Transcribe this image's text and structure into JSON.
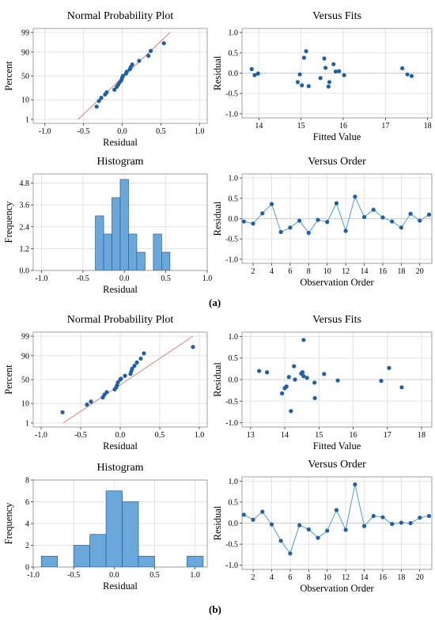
{
  "figure_labels": [
    "(a)",
    "(b)"
  ],
  "colors": {
    "point": "#1f5fa8",
    "line": "#4a9fd6",
    "ref": "#e07a7a",
    "bar": "#6aa8dc",
    "bar_edge": "#2c5f8a",
    "grid": "#e3e3e3",
    "zero": "#b0b0b0"
  },
  "chart_data": [
    {
      "type": "scatter",
      "title": "Normal Probability Plot",
      "xlabel": "Residual",
      "ylabel": "Percent",
      "xlim": [
        -1.15,
        1.1
      ],
      "xticks": [
        -1.0,
        -0.5,
        0.0,
        0.5,
        1.0
      ],
      "yticks": [
        1,
        10,
        50,
        90,
        99
      ],
      "yscale": "normal-probability",
      "reference_line": [
        [
          -0.57,
          1
        ],
        [
          0.62,
          99
        ]
      ],
      "points": [
        [
          -0.33,
          5
        ],
        [
          -0.3,
          9
        ],
        [
          -0.27,
          12
        ],
        [
          -0.22,
          16
        ],
        [
          -0.2,
          19
        ],
        [
          -0.1,
          23
        ],
        [
          -0.07,
          28
        ],
        [
          -0.05,
          32
        ],
        [
          -0.03,
          37
        ],
        [
          -0.01,
          41
        ],
        [
          0.0,
          46
        ],
        [
          0.01,
          50
        ],
        [
          0.05,
          55
        ],
        [
          0.06,
          59
        ],
        [
          0.1,
          64
        ],
        [
          0.11,
          68
        ],
        [
          0.13,
          73
        ],
        [
          0.22,
          79
        ],
        [
          0.34,
          86
        ],
        [
          0.37,
          91
        ],
        [
          0.54,
          96
        ]
      ]
    },
    {
      "type": "scatter",
      "title": "Versus Fits",
      "xlabel": "Fitted Value",
      "ylabel": "Residual",
      "xlim": [
        13.6,
        18.1
      ],
      "xticks": [
        14,
        15,
        16,
        17,
        18
      ],
      "ylim": [
        -1.1,
        1.1
      ],
      "yticks": [
        -1.0,
        -0.5,
        0.0,
        0.5,
        1.0
      ],
      "points": [
        [
          13.83,
          0.1
        ],
        [
          13.9,
          -0.05
        ],
        [
          13.98,
          -0.01
        ],
        [
          14.92,
          -0.22
        ],
        [
          14.97,
          -0.03
        ],
        [
          15.02,
          -0.3
        ],
        [
          15.07,
          0.38
        ],
        [
          15.12,
          0.54
        ],
        [
          15.18,
          -0.32
        ],
        [
          15.46,
          -0.12
        ],
        [
          15.55,
          0.36
        ],
        [
          15.58,
          0.13
        ],
        [
          15.65,
          -0.33
        ],
        [
          15.67,
          -0.22
        ],
        [
          15.77,
          0.22
        ],
        [
          15.82,
          0.04
        ],
        [
          15.9,
          0.05
        ],
        [
          16.02,
          -0.05
        ],
        [
          17.4,
          0.12
        ],
        [
          17.52,
          -0.03
        ],
        [
          17.62,
          -0.07
        ]
      ]
    },
    {
      "type": "bar",
      "title": "Histogram",
      "xlabel": "Residual",
      "ylabel": "Frequency",
      "xlim": [
        -1.1,
        1.0
      ],
      "xticks": [
        -1.0,
        -0.5,
        0.0,
        0.5,
        1.0
      ],
      "ylim": [
        0,
        5.3
      ],
      "yticks": [
        0.0,
        1.2,
        2.4,
        3.6,
        4.8
      ],
      "bin_width": 0.1,
      "bin_starts": [
        -0.35,
        -0.25,
        -0.15,
        -0.05,
        0.05,
        0.15,
        0.25,
        0.35,
        0.45
      ],
      "values": [
        3,
        2,
        4,
        5,
        2,
        1,
        0,
        2,
        1
      ]
    },
    {
      "type": "line",
      "title": "Versus Order",
      "xlabel": "Observation Order",
      "ylabel": "Residual",
      "xlim": [
        0.8,
        21.3
      ],
      "xticks": [
        2,
        4,
        6,
        8,
        10,
        12,
        14,
        16,
        18,
        20
      ],
      "ylim": [
        -1.1,
        1.1
      ],
      "yticks": [
        -1.0,
        -0.5,
        0.0,
        0.5,
        1.0
      ],
      "x": [
        1,
        2,
        3,
        4,
        5,
        6,
        7,
        8,
        9,
        10,
        11,
        12,
        13,
        14,
        15,
        16,
        17,
        18,
        19,
        20,
        21
      ],
      "y": [
        -0.07,
        -0.12,
        0.13,
        0.36,
        -0.33,
        -0.22,
        -0.05,
        -0.35,
        -0.03,
        -0.08,
        0.38,
        -0.3,
        0.54,
        0.04,
        0.22,
        0.03,
        -0.07,
        -0.22,
        0.12,
        -0.05,
        0.1
      ]
    },
    {
      "type": "scatter",
      "title": "Normal Probability Plot",
      "xlabel": "Residual",
      "ylabel": "Percent",
      "xlim": [
        -1.1,
        1.1
      ],
      "xticks": [
        -1.0,
        -0.5,
        0.0,
        0.5,
        1.0
      ],
      "yticks": [
        1,
        10,
        50,
        90,
        99
      ],
      "yscale": "normal-probability",
      "reference_line": [
        [
          -0.72,
          1
        ],
        [
          0.92,
          99
        ]
      ],
      "points": [
        [
          -0.73,
          4
        ],
        [
          -0.42,
          9
        ],
        [
          -0.37,
          12
        ],
        [
          -0.22,
          17
        ],
        [
          -0.2,
          21
        ],
        [
          -0.17,
          25
        ],
        [
          -0.07,
          30
        ],
        [
          -0.05,
          34
        ],
        [
          -0.04,
          38
        ],
        [
          -0.03,
          44
        ],
        [
          0.0,
          50
        ],
        [
          0.01,
          52
        ],
        [
          0.06,
          58
        ],
        [
          0.13,
          62
        ],
        [
          0.14,
          67
        ],
        [
          0.15,
          72
        ],
        [
          0.18,
          77
        ],
        [
          0.21,
          82
        ],
        [
          0.26,
          87
        ],
        [
          0.3,
          92
        ],
        [
          0.92,
          96
        ]
      ]
    },
    {
      "type": "scatter",
      "title": "Versus Fits",
      "xlabel": "Fitted Value",
      "ylabel": "Residual",
      "xlim": [
        12.75,
        18.3
      ],
      "xticks": [
        13,
        14,
        15,
        16,
        17,
        18
      ],
      "ylim": [
        -1.1,
        1.1
      ],
      "yticks": [
        -1.0,
        -0.5,
        0.0,
        0.5,
        1.0
      ],
      "points": [
        [
          13.25,
          0.2
        ],
        [
          13.48,
          0.17
        ],
        [
          13.92,
          -0.32
        ],
        [
          14.0,
          -0.2
        ],
        [
          14.05,
          -0.16
        ],
        [
          14.12,
          0.06
        ],
        [
          14.18,
          -0.73
        ],
        [
          14.27,
          0.31
        ],
        [
          14.3,
          0.0
        ],
        [
          14.48,
          0.14
        ],
        [
          14.52,
          0.17
        ],
        [
          14.55,
          0.92
        ],
        [
          14.55,
          0.08
        ],
        [
          14.65,
          0.04
        ],
        [
          14.87,
          -0.07
        ],
        [
          14.88,
          -0.43
        ],
        [
          15.15,
          0.13
        ],
        [
          15.55,
          -0.02
        ],
        [
          16.82,
          -0.03
        ],
        [
          17.05,
          0.27
        ],
        [
          17.42,
          -0.18
        ]
      ]
    },
    {
      "type": "bar",
      "title": "Histogram",
      "xlabel": "Residual",
      "ylabel": "Frequency",
      "xlim": [
        -1.0,
        1.15
      ],
      "xticks": [
        -1.0,
        -0.5,
        0.0,
        0.5,
        1.0
      ],
      "ylim": [
        0,
        8
      ],
      "yticks": [
        0,
        2,
        4,
        6,
        8
      ],
      "bin_width": 0.2,
      "bin_starts": [
        -0.9,
        -0.7,
        -0.5,
        -0.3,
        -0.1,
        0.1,
        0.3,
        0.5,
        0.7,
        0.9
      ],
      "values": [
        1,
        0,
        2,
        3,
        7,
        6,
        1,
        0,
        0,
        1
      ]
    },
    {
      "type": "line",
      "title": "Versus Order",
      "xlabel": "Observation Order",
      "ylabel": "Residual",
      "xlim": [
        0.8,
        21.3
      ],
      "xticks": [
        2,
        4,
        6,
        8,
        10,
        12,
        14,
        16,
        18,
        20
      ],
      "ylim": [
        -1.1,
        1.1
      ],
      "yticks": [
        -1.0,
        -0.5,
        0.0,
        0.5,
        1.0
      ],
      "x": [
        1,
        2,
        3,
        4,
        5,
        6,
        7,
        8,
        9,
        10,
        11,
        12,
        13,
        14,
        15,
        16,
        17,
        18,
        19,
        20,
        21
      ],
      "y": [
        0.2,
        0.08,
        0.27,
        -0.03,
        -0.42,
        -0.72,
        -0.05,
        -0.15,
        -0.35,
        -0.18,
        0.31,
        -0.16,
        0.92,
        -0.07,
        0.17,
        0.14,
        -0.02,
        0.01,
        0.0,
        0.13,
        0.17
      ]
    }
  ]
}
